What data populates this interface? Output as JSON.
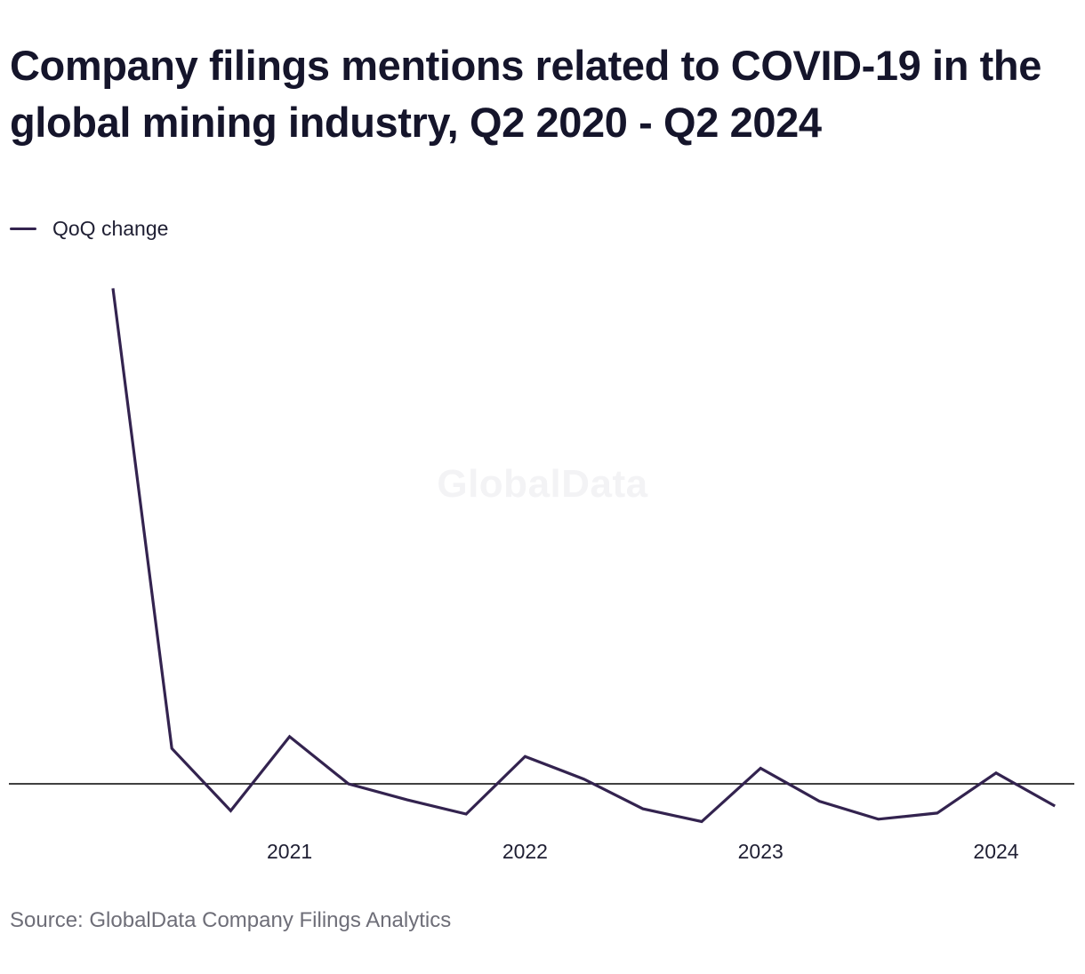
{
  "title": "Company filings mentions related to COVID-19 in the global mining industry, Q2 2020 - Q2 2024",
  "legend": {
    "label": "QoQ change"
  },
  "watermark": "GlobalData",
  "source": "Source: GlobalData Company Filings Analytics",
  "colors": {
    "line": "#33234f",
    "zero_line": "#000000",
    "watermark": "#f3f3f5"
  },
  "chart_data": {
    "type": "line",
    "title": "Company filings mentions related to COVID-19 in the global mining industry, Q2 2020 - Q2 2024",
    "x_tick_labels": [
      "2021",
      "2022",
      "2023",
      "2024"
    ],
    "x": [
      "Q2 2020",
      "Q3 2020",
      "Q4 2020",
      "Q1 2021",
      "Q2 2021",
      "Q3 2021",
      "Q4 2021",
      "Q1 2022",
      "Q2 2022",
      "Q3 2022",
      "Q4 2022",
      "Q1 2023",
      "Q2 2023",
      "Q3 2023",
      "Q4 2023",
      "Q1 2024",
      "Q2 2024"
    ],
    "series": [
      {
        "name": "QoQ change",
        "values": [
          10.5,
          0.75,
          -0.57,
          1.0,
          0.0,
          -0.34,
          -0.64,
          0.58,
          0.1,
          -0.53,
          -0.8,
          0.33,
          -0.37,
          -0.75,
          -0.62,
          0.23,
          -0.47
        ]
      }
    ],
    "ylim": [
      -1.5,
      11
    ],
    "y_axis_labels": "none",
    "zero_line": true,
    "grid": false,
    "legend_position": "top-left"
  }
}
